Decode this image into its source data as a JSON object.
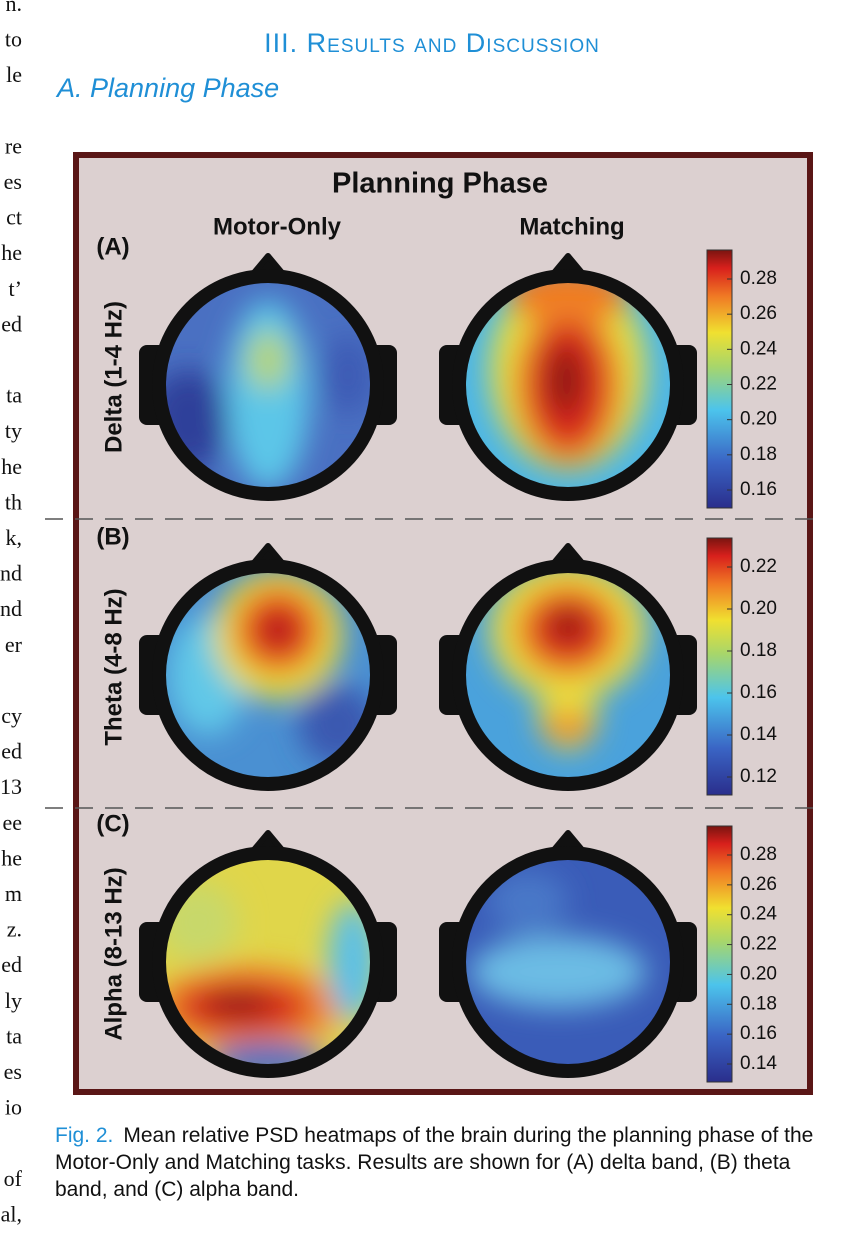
{
  "left_column_fragments": [
    [
      "n.",
      "to",
      "le"
    ],
    [
      "re",
      "es",
      "ct",
      "he",
      "t’",
      "ed"
    ],
    [
      "ta",
      "ty",
      "he",
      "th",
      "k,",
      "nd",
      "nd",
      "er"
    ],
    [
      "cy",
      "ed",
      "13",
      "ee",
      "he",
      "m",
      "z.",
      "ed",
      "ly",
      "ta",
      "es",
      "io"
    ],
    [
      "of",
      "al,"
    ]
  ],
  "section": {
    "heading": "III. Results and Discussion",
    "subheading": "A. Planning Phase"
  },
  "figure": {
    "title": "Planning Phase",
    "columns": [
      "Motor-Only",
      "Matching"
    ],
    "rows": [
      {
        "label": "(A)",
        "band": "Delta (1-4 Hz)",
        "colorbar": [
          "0.28",
          "0.26",
          "0.24",
          "0.22",
          "0.20",
          "0.18",
          "0.16"
        ]
      },
      {
        "label": "(B)",
        "band": "Theta (4-8 Hz)",
        "colorbar": [
          "0.22",
          "0.20",
          "0.18",
          "0.16",
          "0.14",
          "0.12"
        ]
      },
      {
        "label": "(C)",
        "band": "Alpha (8-13 Hz)",
        "colorbar": [
          "0.28",
          "0.26",
          "0.24",
          "0.22",
          "0.20",
          "0.18",
          "0.16",
          "0.14"
        ]
      }
    ]
  },
  "caption": {
    "label": "Fig. 2.",
    "text": "Mean relative PSD heatmaps of the brain during the planning phase of the Motor-Only and Matching tasks. Results are shown for (A) delta band, (B) theta band, and (C) alpha band."
  }
}
